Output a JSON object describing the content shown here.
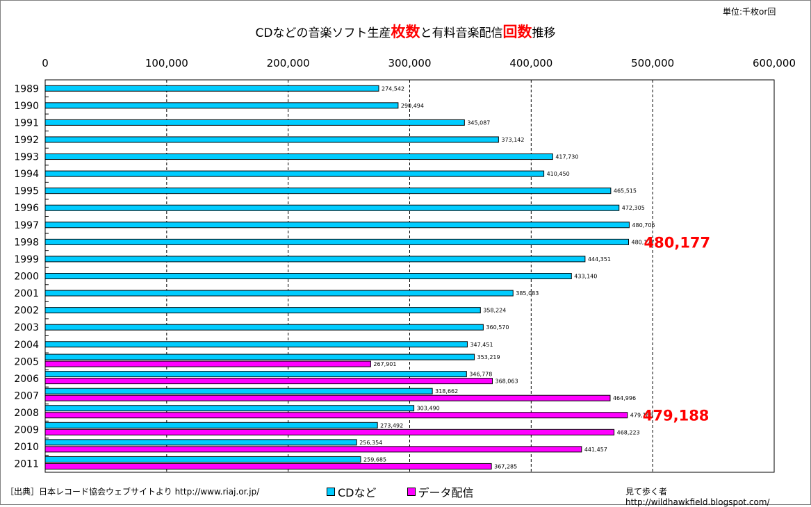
{
  "header": {
    "unit": "単位:千枚or回",
    "title_part1": "CDなどの音楽ソフト生産",
    "title_hl1": "枚数",
    "title_part2": "と有料音楽配信",
    "title_hl2": "回数",
    "title_part3": "推移"
  },
  "footer": {
    "source": "［出典］日本レコード協会ウェブサイトより http://www.riaj.or.jp/",
    "credit": "見て歩く者 http://wildhawkfield.blogspot.com/"
  },
  "colors": {
    "cd": "#00ccff",
    "digital": "#ff00ff",
    "highlight": "#ff0000"
  },
  "chart_data": {
    "type": "bar",
    "orientation": "horizontal",
    "categories": [
      "1989",
      "1990",
      "1991",
      "1992",
      "1993",
      "1994",
      "1995",
      "1996",
      "1997",
      "1998",
      "1999",
      "2000",
      "2001",
      "2002",
      "2003",
      "2004",
      "2005",
      "2006",
      "2007",
      "2008",
      "2009",
      "2010",
      "2011"
    ],
    "series": [
      {
        "name": "CDなど",
        "values": [
          274542,
          290494,
          345087,
          373142,
          417730,
          410450,
          465515,
          472305,
          480706,
          480177,
          444351,
          433140,
          385083,
          358224,
          360570,
          347451,
          353219,
          346778,
          318662,
          303490,
          273492,
          256354,
          259685
        ]
      },
      {
        "name": "データ配信",
        "values": [
          null,
          null,
          null,
          null,
          null,
          null,
          null,
          null,
          null,
          null,
          null,
          null,
          null,
          null,
          null,
          null,
          267901,
          368063,
          464996,
          479188,
          468223,
          441457,
          367285
        ]
      }
    ],
    "value_labels_cd": [
      "274,542",
      "290,494",
      "345,087",
      "373,142",
      "417,730",
      "410,450",
      "465,515",
      "472,305",
      "480,706",
      "480,177",
      "444,351",
      "433,140",
      "385,083",
      "358,224",
      "360,570",
      "347,451",
      "353,219",
      "346,778",
      "318,662",
      "303,490",
      "273,492",
      "256,354",
      "259,685"
    ],
    "value_labels_digital": [
      null,
      null,
      null,
      null,
      null,
      null,
      null,
      null,
      null,
      null,
      null,
      null,
      null,
      null,
      null,
      null,
      "267,901",
      "368,063",
      "464,996",
      "479,188",
      "468,223",
      "441,457",
      "367,285"
    ],
    "highlight_labels": [
      {
        "category": "1998",
        "series": "CDなど",
        "text": "480,177"
      },
      {
        "category": "2008",
        "series": "データ配信",
        "text": "479,188"
      }
    ],
    "xlim": [
      0,
      600000
    ],
    "xticks": [
      0,
      100000,
      200000,
      300000,
      400000,
      500000,
      600000
    ],
    "xtick_labels": [
      "0",
      "100,000",
      "200,000",
      "300,000",
      "400,000",
      "500,000",
      "600,000"
    ],
    "grid": true,
    "legend": "bottom-center"
  }
}
